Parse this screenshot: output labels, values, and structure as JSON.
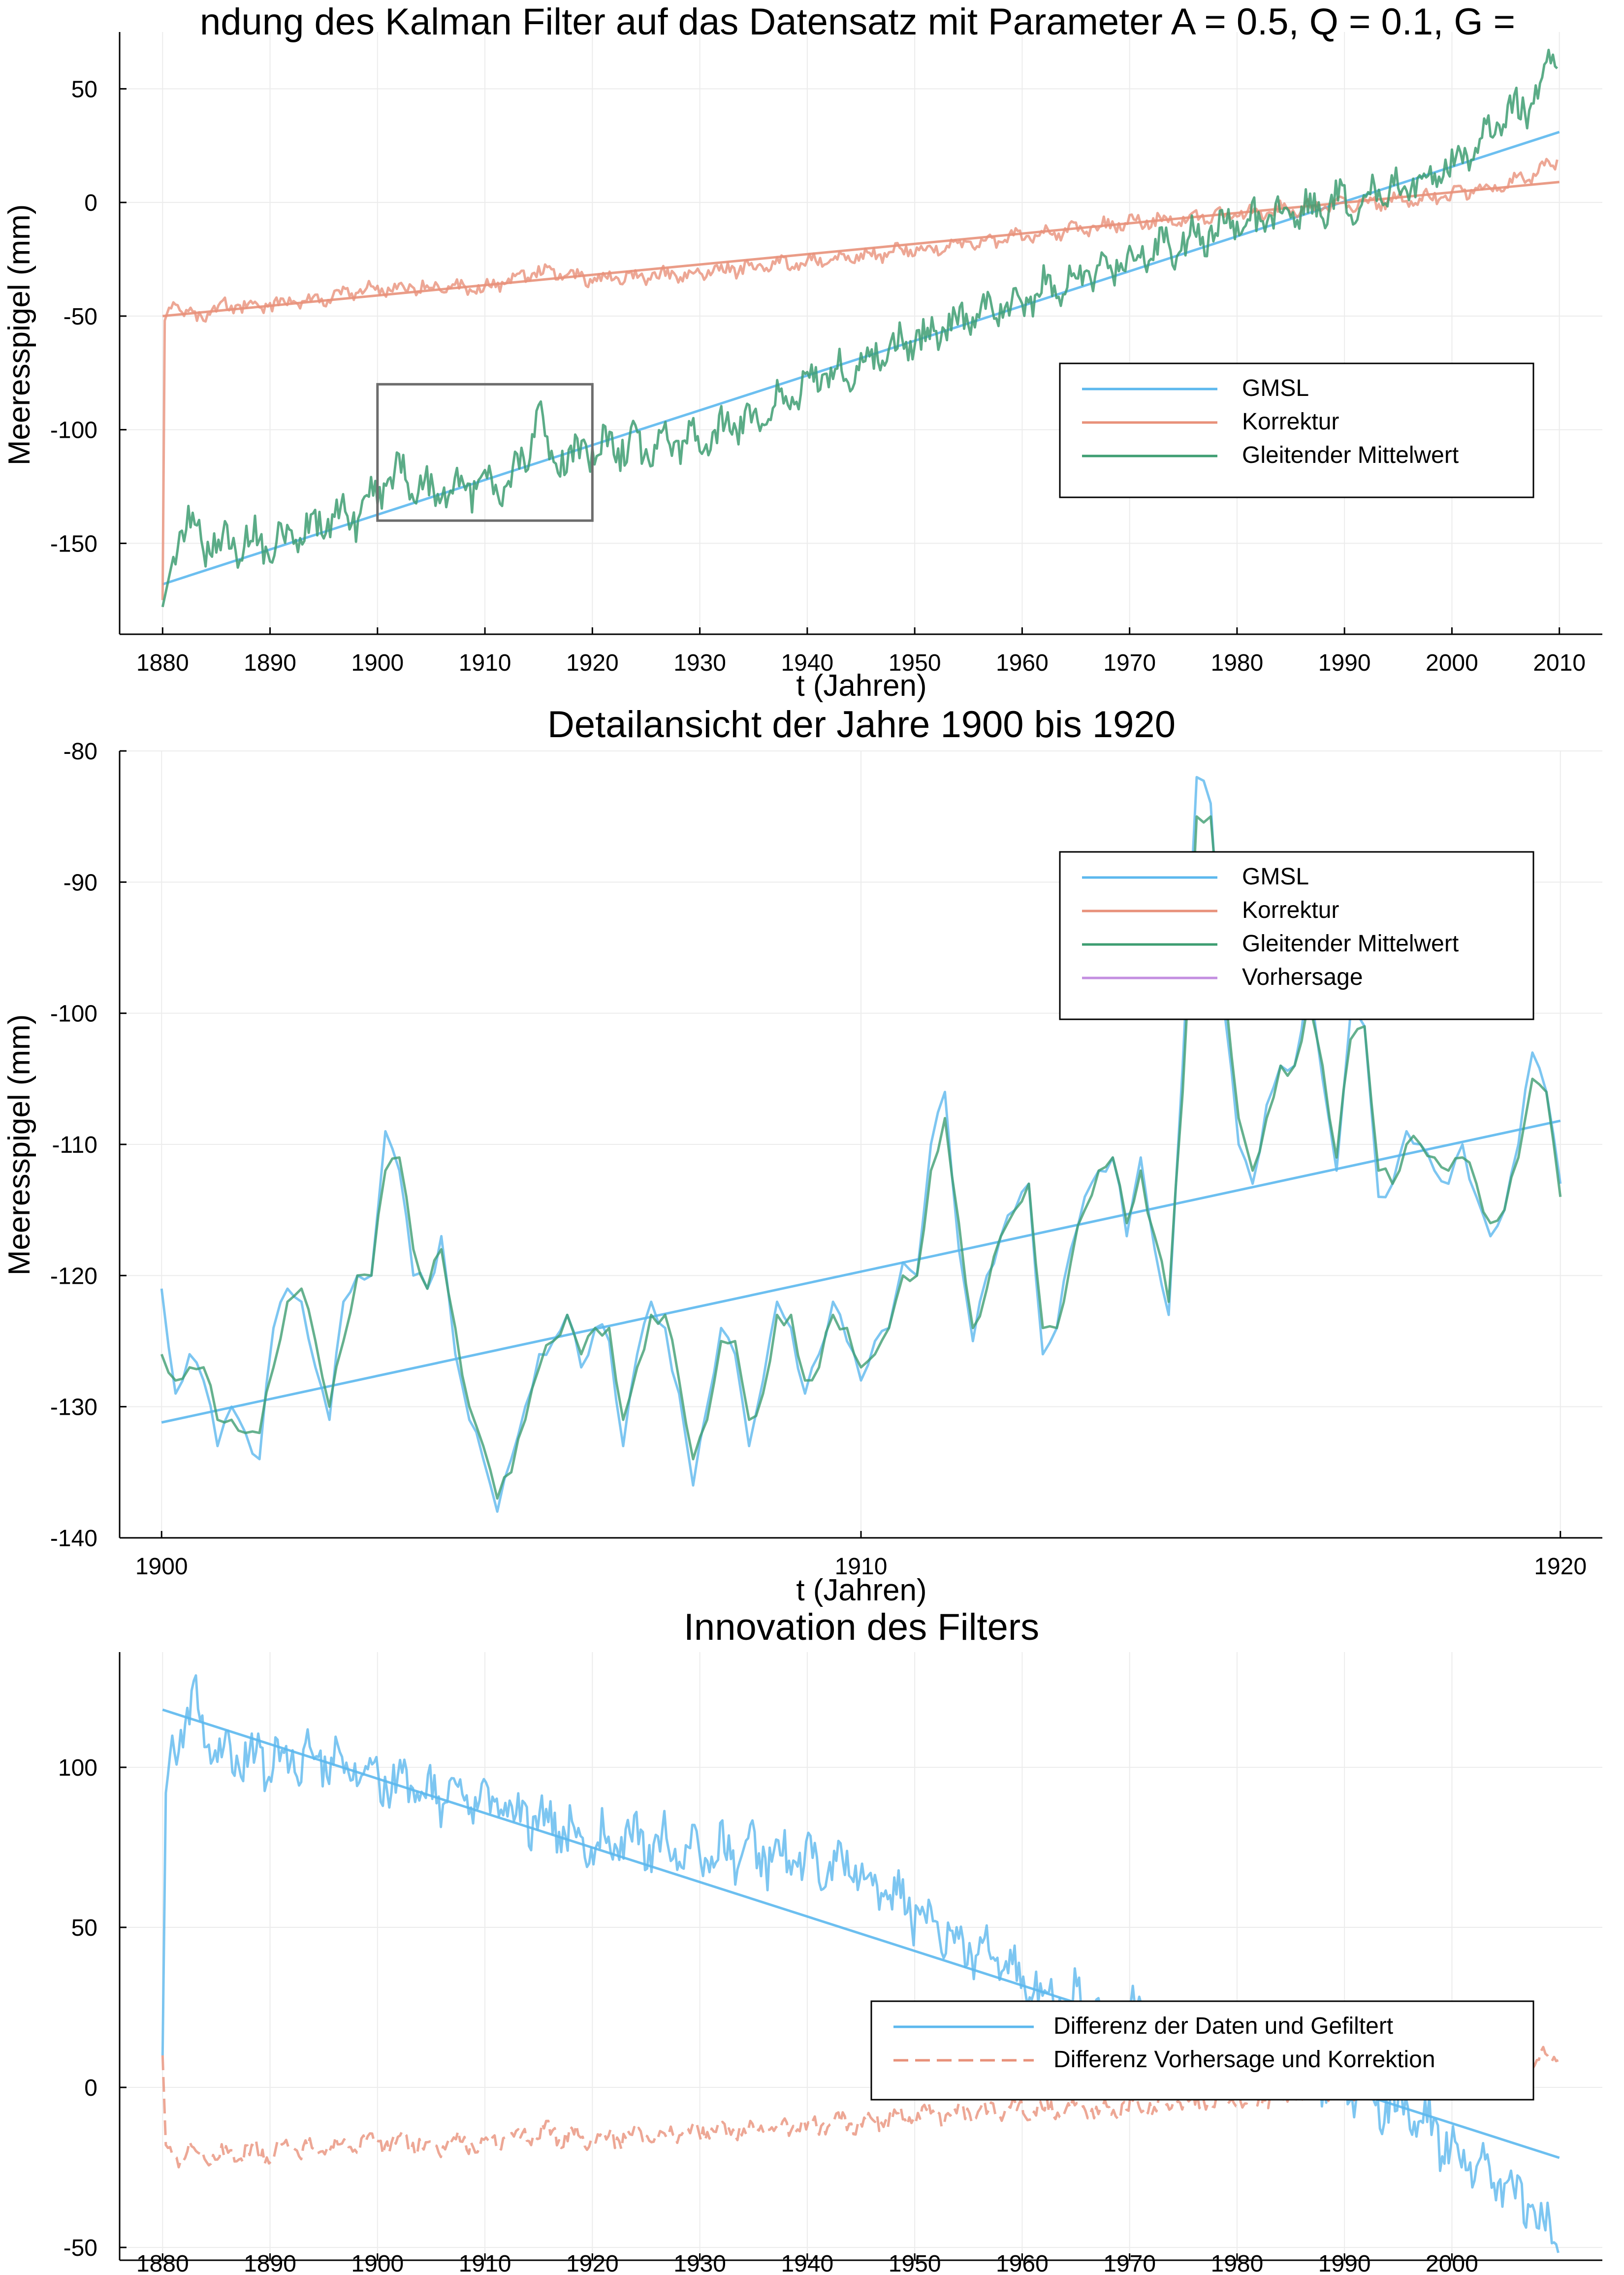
{
  "colors": {
    "blue": "#5cb8ee",
    "orange": "#e8917a",
    "green": "#3e9e72",
    "purple": "#c38ee0",
    "grid": "#ececec",
    "axis": "#000000",
    "box": "#6d6d6d",
    "overlap": "#3f9ea3"
  },
  "chart_data": [
    {
      "id": "top",
      "type": "line",
      "title": "ndung des Kalman Filter auf das Datensatz mit Parameter A = 0.5, Q = 0.1, G =",
      "xlabel": "t (Jahren)",
      "ylabel": "Meeresspigel (mm)",
      "xlim": [
        1876,
        2014
      ],
      "ylim": [
        -190,
        75
      ],
      "xticks": [
        1880,
        1890,
        1900,
        1910,
        1920,
        1930,
        1940,
        1950,
        1960,
        1970,
        1980,
        1990,
        2000,
        2010
      ],
      "yticks": [
        -150,
        -100,
        -50,
        0,
        50
      ],
      "grid": true,
      "legend_position": "right",
      "series": [
        {
          "name": "GMSL",
          "color": "blue",
          "kind": "straight line",
          "x": [
            1880,
            2010
          ],
          "y": [
            -168,
            31
          ]
        },
        {
          "name": "Korrektur",
          "color": "orange",
          "kind": "straight line",
          "x": [
            1880,
            2010
          ],
          "y": [
            -50,
            9
          ]
        },
        {
          "name": "Korrektur",
          "color": "orange",
          "kind": "noisy",
          "x": [
            1880,
            1880.2,
            1881,
            1882,
            1883,
            1885,
            1890,
            1895,
            1900,
            1905,
            1910,
            1915,
            1920,
            1930,
            1940,
            1950,
            1960,
            1970,
            1980,
            1990,
            2000,
            2005,
            2008,
            2010
          ],
          "y": [
            -175,
            -52,
            -42,
            -47,
            -52,
            -46,
            -45,
            -42,
            -38,
            -37,
            -38,
            -30,
            -34,
            -31,
            -26,
            -21,
            -15,
            -9,
            -5,
            -1,
            3,
            8,
            13,
            19
          ]
        },
        {
          "name": "Gleitender Mittelwert",
          "color": "green",
          "kind": "noisy",
          "x": [
            1880,
            1881,
            1882,
            1884,
            1886,
            1888,
            1890,
            1892,
            1894,
            1896,
            1898,
            1900,
            1902,
            1904,
            1906,
            1908,
            1910,
            1912,
            1914,
            1915,
            1916,
            1918,
            1920,
            1925,
            1930,
            1935,
            1940,
            1945,
            1950,
            1955,
            1960,
            1965,
            1970,
            1975,
            1980,
            1985,
            1990,
            1995,
            2000,
            2005,
            2008,
            2010
          ],
          "y": [
            -178,
            -156,
            -140,
            -150,
            -152,
            -148,
            -150,
            -147,
            -143,
            -140,
            -138,
            -128,
            -118,
            -126,
            -128,
            -124,
            -126,
            -122,
            -115,
            -87,
            -110,
            -112,
            -107,
            -108,
            -104,
            -95,
            -80,
            -72,
            -60,
            -52,
            -42,
            -33,
            -25,
            -19,
            -8,
            -6,
            0,
            5,
            17,
            36,
            48,
            68
          ]
        }
      ],
      "inset_box": {
        "x": [
          1900,
          1920
        ],
        "y": [
          -140,
          -80
        ]
      }
    },
    {
      "id": "middle",
      "type": "line",
      "title": "Detailansicht der Jahre 1900 bis 1920",
      "xlabel": "t (Jahren)",
      "ylabel": "Meeresspigel (mm)",
      "xlim": [
        1899.4,
        1920.6
      ],
      "ylim": [
        -140,
        -80
      ],
      "xticks": [
        1900,
        1910,
        1920
      ],
      "yticks": [
        -140,
        -130,
        -120,
        -110,
        -100,
        -90,
        -80
      ],
      "grid": true,
      "legend_position": "top-right",
      "legend": [
        "GMSL",
        "Korrektur",
        "Gleitender Mittelwert",
        "Vorhersage"
      ],
      "series": [
        {
          "name": "GMSL trend",
          "color": "blue",
          "kind": "straight line",
          "x": [
            1900,
            1920
          ],
          "y": [
            -131.2,
            -108.2
          ]
        },
        {
          "name": "GMSL",
          "color": "blue",
          "kind": "detail",
          "x": [
            1900.0,
            1900.2,
            1900.4,
            1900.6,
            1900.8,
            1901.0,
            1901.2,
            1901.4,
            1901.6,
            1901.8,
            1902.0,
            1902.2,
            1902.4,
            1902.6,
            1902.8,
            1903.0,
            1903.2,
            1903.4,
            1903.6,
            1903.8,
            1904.0,
            1904.2,
            1904.4,
            1904.6,
            1904.8,
            1905.0,
            1905.2,
            1905.4,
            1905.6,
            1905.8,
            1906.0,
            1906.2,
            1906.4,
            1906.6,
            1906.8,
            1907.0,
            1907.2,
            1907.4,
            1907.6,
            1907.8,
            1908.0,
            1908.2,
            1908.4,
            1908.6,
            1908.8,
            1909.0,
            1909.2,
            1909.4,
            1909.6,
            1909.8,
            1910.0,
            1910.2,
            1910.4,
            1910.6,
            1910.8,
            1911.0,
            1911.2,
            1911.4,
            1911.6,
            1911.8,
            1912.0,
            1912.2,
            1912.4,
            1912.6,
            1912.8,
            1913.0,
            1913.2,
            1913.4,
            1913.6,
            1913.8,
            1914.0,
            1914.2,
            1914.4,
            1914.6,
            1914.8,
            1915.0,
            1915.2,
            1915.4,
            1915.6,
            1915.8,
            1916.0,
            1916.2,
            1916.4,
            1916.6,
            1916.8,
            1917.0,
            1917.2,
            1917.4,
            1917.6,
            1917.8,
            1918.0,
            1918.2,
            1918.4,
            1918.6,
            1918.8,
            1919.0,
            1919.2,
            1919.4,
            1919.6,
            1919.8,
            1920.0
          ],
          "y": [
            -121,
            -129,
            -126,
            -128,
            -133,
            -130,
            -132,
            -134,
            -124,
            -121,
            -122,
            -127,
            -131,
            -122,
            -120,
            -120,
            -109,
            -112,
            -120,
            -121,
            -117,
            -126,
            -131,
            -134,
            -138,
            -134,
            -130,
            -126,
            -125,
            -123,
            -127,
            -124,
            -125,
            -133,
            -126,
            -122,
            -124,
            -129,
            -136,
            -130,
            -124,
            -126,
            -133,
            -128,
            -122,
            -124,
            -129,
            -126,
            -122,
            -125,
            -128,
            -125,
            -124,
            -119,
            -120,
            -110,
            -106,
            -118,
            -125,
            -120,
            -117,
            -115,
            -113,
            -126,
            -124,
            -118,
            -114,
            -112,
            -111,
            -117,
            -111,
            -118,
            -123,
            -104,
            -82,
            -84,
            -100,
            -110,
            -113,
            -107,
            -104,
            -104,
            -97,
            -105,
            -112,
            -100,
            -101,
            -114,
            -113,
            -109,
            -110,
            -112,
            -113,
            -110,
            -114,
            -117,
            -115,
            -110,
            -103,
            -106,
            -113
          ]
        },
        {
          "name": "Gleitender Mittelwert",
          "color": "green",
          "kind": "detail",
          "x": [
            1900.0,
            1900.2,
            1900.4,
            1900.6,
            1900.8,
            1901.0,
            1901.2,
            1901.4,
            1901.6,
            1901.8,
            1902.0,
            1902.2,
            1902.4,
            1902.6,
            1902.8,
            1903.0,
            1903.2,
            1903.4,
            1903.6,
            1903.8,
            1904.0,
            1904.2,
            1904.4,
            1904.6,
            1904.8,
            1905.0,
            1905.2,
            1905.4,
            1905.6,
            1905.8,
            1906.0,
            1906.2,
            1906.4,
            1906.6,
            1906.8,
            1907.0,
            1907.2,
            1907.4,
            1907.6,
            1907.8,
            1908.0,
            1908.2,
            1908.4,
            1908.6,
            1908.8,
            1909.0,
            1909.2,
            1909.4,
            1909.6,
            1909.8,
            1910.0,
            1910.2,
            1910.4,
            1910.6,
            1910.8,
            1911.0,
            1911.2,
            1911.4,
            1911.6,
            1911.8,
            1912.0,
            1912.2,
            1912.4,
            1912.6,
            1912.8,
            1913.0,
            1913.2,
            1913.4,
            1913.6,
            1913.8,
            1914.0,
            1914.2,
            1914.4,
            1914.6,
            1914.8,
            1915.0,
            1915.2,
            1915.4,
            1915.6,
            1915.8,
            1916.0,
            1916.2,
            1916.4,
            1916.6,
            1916.8,
            1917.0,
            1917.2,
            1917.4,
            1917.6,
            1917.8,
            1918.0,
            1918.2,
            1918.4,
            1918.6,
            1918.8,
            1919.0,
            1919.2,
            1919.4,
            1919.6,
            1919.8,
            1920.0
          ],
          "y": [
            -126,
            -128,
            -127,
            -127,
            -131,
            -131,
            -132,
            -132,
            -127,
            -122,
            -121,
            -125,
            -130,
            -125,
            -120,
            -120,
            -112,
            -111,
            -118,
            -121,
            -118,
            -124,
            -130,
            -133,
            -137,
            -135,
            -131,
            -127,
            -125,
            -123,
            -126,
            -124,
            -124,
            -131,
            -127,
            -123,
            -123,
            -128,
            -134,
            -131,
            -125,
            -125,
            -131,
            -129,
            -123,
            -123,
            -128,
            -127,
            -123,
            -124,
            -127,
            -126,
            -124,
            -120,
            -120,
            -112,
            -108,
            -116,
            -124,
            -121,
            -117,
            -115,
            -113,
            -124,
            -124,
            -119,
            -115,
            -112,
            -111,
            -116,
            -112,
            -117,
            -122,
            -106,
            -85,
            -85,
            -98,
            -108,
            -112,
            -108,
            -104,
            -104,
            -99,
            -104,
            -111,
            -102,
            -101,
            -112,
            -113,
            -110,
            -110,
            -111,
            -112,
            -111,
            -113,
            -116,
            -115,
            -111,
            -105,
            -106,
            -114
          ]
        }
      ]
    },
    {
      "id": "bottom",
      "type": "line",
      "title": "Innovation des Filters",
      "xlabel": "",
      "ylabel": "",
      "xlim": [
        1876,
        2014
      ],
      "ylim": [
        -54,
        136
      ],
      "xticks": [
        1880,
        1890,
        1900,
        1910,
        1920,
        1930,
        1940,
        1950,
        1960,
        1970,
        1980,
        1990,
        2000
      ],
      "yticks": [
        -50,
        0,
        50,
        100
      ],
      "grid": true,
      "legend_position": "bottom-right",
      "series": [
        {
          "name": "Differenz der Daten und Gefiltert",
          "color": "blue",
          "kind": "straight line",
          "x": [
            1880,
            2010
          ],
          "y": [
            118,
            -22
          ]
        },
        {
          "name": "Differenz der Daten und Gefiltert",
          "color": "blue",
          "kind": "noisy",
          "x": [
            1880,
            1880.3,
            1881,
            1882,
            1883,
            1885,
            1890,
            1895,
            1900,
            1905,
            1910,
            1915,
            1920,
            1925,
            1930,
            1935,
            1940,
            1945,
            1950,
            1955,
            1960,
            1965,
            1970,
            1975,
            1980,
            1990,
            1995,
            2000,
            2005,
            2008,
            2010
          ],
          "y": [
            10,
            92,
            110,
            113,
            120,
            105,
            102,
            104,
            97,
            92,
            88,
            84,
            78,
            77,
            73,
            73,
            70,
            68,
            55,
            43,
            33,
            26,
            22,
            16,
            12,
            2,
            -6,
            -18,
            -30,
            -40,
            -48
          ]
        },
        {
          "name": "Differenz Vorhersage und Korrektion",
          "color": "orange",
          "kind": "noisy-dashed",
          "x": [
            1880,
            1880.3,
            1881,
            1882,
            1885,
            1890,
            1895,
            1900,
            1905,
            1910,
            1915,
            1920,
            1925,
            1930,
            1935,
            1940,
            1945,
            1950,
            1955,
            1960,
            1965,
            1970,
            1980,
            1990,
            2000,
            2005,
            2008,
            2010
          ],
          "y": [
            10,
            -18,
            -22,
            -20,
            -21,
            -20,
            -19,
            -17,
            -18,
            -17,
            -14,
            -16,
            -15,
            -14,
            -13,
            -12,
            -11,
            -9,
            -8,
            -7,
            -7,
            -6,
            -4,
            -1,
            3,
            6,
            9,
            10
          ]
        }
      ]
    }
  ],
  "legends": {
    "top": [
      "GMSL",
      "Korrektur",
      "Gleitender Mittelwert"
    ],
    "middle": [
      "GMSL",
      "Korrektur",
      "Gleitender Mittelwert",
      "Vorhersage"
    ],
    "bottom": [
      "Differenz der Daten und Gefiltert",
      "Differenz Vorhersage und Korrektion"
    ]
  }
}
